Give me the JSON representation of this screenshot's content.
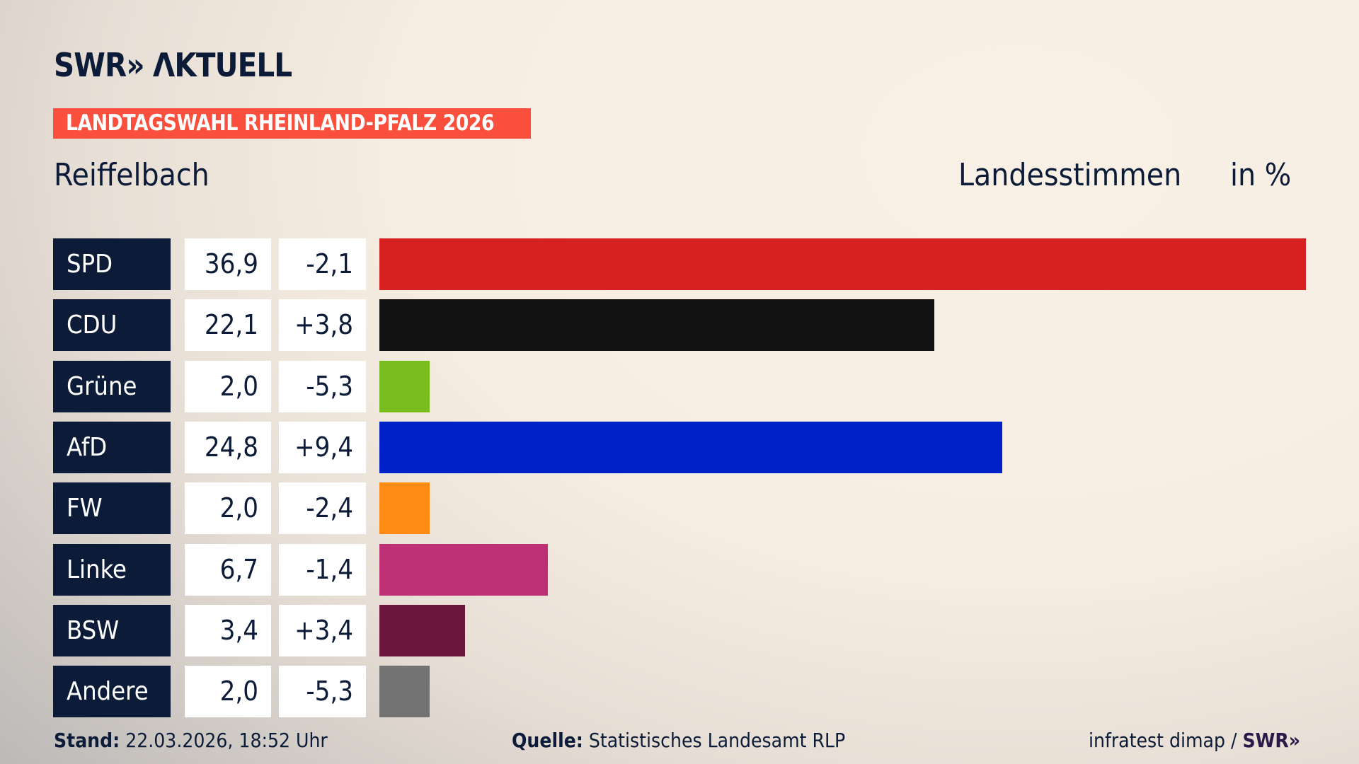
{
  "header": {
    "logo": "SWR AKTUELL",
    "banner": "LANDTAGSWAHL RHEINLAND-PFALZ 2026",
    "place": "Reiffelbach",
    "vote_type": "Landesstimmen",
    "unit": "in %"
  },
  "chart_data": {
    "type": "bar",
    "orientation": "horizontal",
    "categories": [
      "SPD",
      "CDU",
      "Grüne",
      "AfD",
      "FW",
      "Linke",
      "BSW",
      "Andere"
    ],
    "values": [
      "36,9",
      "22,1",
      "2,0",
      "24,8",
      "2,0",
      "6,7",
      "3,4",
      "2,0"
    ],
    "numeric_values": [
      36.9,
      22.1,
      2.0,
      24.8,
      2.0,
      6.7,
      3.4,
      2.0
    ],
    "changes": [
      "-2,1",
      "+3,8",
      "-5,3",
      "+9,4",
      "-2,4",
      "-1,4",
      "+3,4",
      "-5,3"
    ],
    "colors": [
      "#d72020",
      "#121212",
      "#78bc1e",
      "#0021c8",
      "#ff8b14",
      "#bd3075",
      "#6b163f",
      "#737373"
    ],
    "min_bar_value": 2.0
  },
  "footer": {
    "stand_label": "Stand:",
    "stand_value": "22.03.2026, 18:52 Uhr",
    "source_label": "Quelle:",
    "source_value": "Statistisches Landesamt RLP",
    "credit": "infratest dimap /",
    "credit_logo": "SWR"
  }
}
